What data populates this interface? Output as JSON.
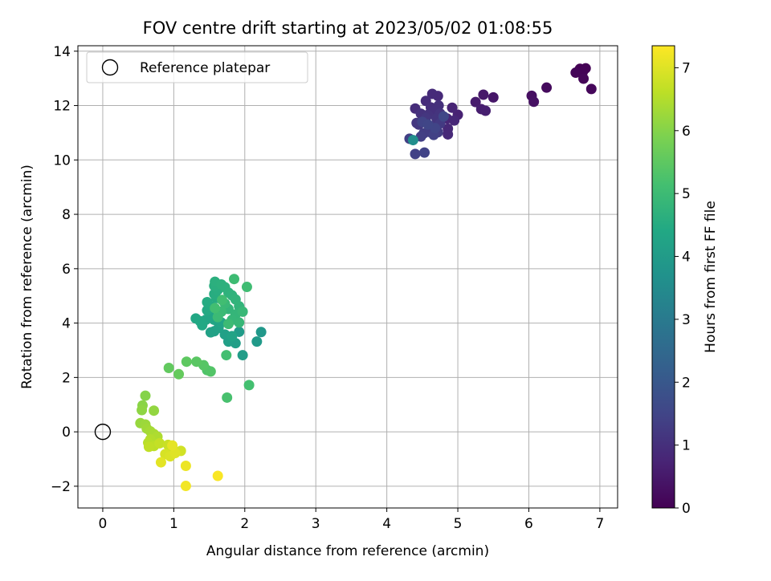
{
  "chart_data": {
    "type": "scatter",
    "title": "FOV centre drift starting at 2023/05/02 01:08:55",
    "xlabel": "Angular distance from reference (arcmin)",
    "ylabel": "Rotation from reference (arcmin)",
    "xlim": [
      -0.35,
      7.25
    ],
    "ylim": [
      -2.8,
      14.2
    ],
    "xticks": [
      0,
      1,
      2,
      3,
      4,
      5,
      6,
      7
    ],
    "yticks": [
      -2,
      0,
      2,
      4,
      6,
      8,
      10,
      12,
      14
    ],
    "xtick_labels": [
      "0",
      "1",
      "2",
      "3",
      "4",
      "5",
      "6",
      "7"
    ],
    "ytick_labels": [
      "−2",
      "0",
      "2",
      "4",
      "6",
      "8",
      "10",
      "12",
      "14"
    ],
    "grid": true,
    "legend": {
      "placement": "upper-left",
      "entries": [
        {
          "label": "Reference platepar",
          "marker": "open-circle"
        }
      ]
    },
    "reference_point": {
      "x": 0,
      "y": 0
    },
    "colorbar": {
      "label": "Hours from first FF file",
      "colormap": "viridis",
      "range": [
        0,
        7.35
      ],
      "ticks": [
        0,
        1,
        2,
        3,
        4,
        5,
        6,
        7
      ],
      "tick_labels": [
        "0",
        "1",
        "2",
        "3",
        "4",
        "5",
        "6",
        "7"
      ]
    },
    "points": [
      [
        6.72,
        13.35,
        0.0
      ],
      [
        6.8,
        13.37,
        0.03
      ],
      [
        6.76,
        13.24,
        0.05
      ],
      [
        6.66,
        13.21,
        0.08
      ],
      [
        6.77,
        12.99,
        0.1
      ],
      [
        6.88,
        12.61,
        0.13
      ],
      [
        6.25,
        12.66,
        0.2
      ],
      [
        6.04,
        12.36,
        0.3
      ],
      [
        6.07,
        12.14,
        0.33
      ],
      [
        5.5,
        12.3,
        0.45
      ],
      [
        5.36,
        12.4,
        0.5
      ],
      [
        5.25,
        12.13,
        0.55
      ],
      [
        5.33,
        11.87,
        0.6
      ],
      [
        5.39,
        11.81,
        0.63
      ],
      [
        5.0,
        11.66,
        0.7
      ],
      [
        4.92,
        11.92,
        0.75
      ],
      [
        4.85,
        11.52,
        0.78
      ],
      [
        4.95,
        11.45,
        0.8
      ],
      [
        4.86,
        11.15,
        0.83
      ],
      [
        4.86,
        10.94,
        0.85
      ],
      [
        4.72,
        12.35,
        0.88
      ],
      [
        4.64,
        12.43,
        0.9
      ],
      [
        4.55,
        12.17,
        0.92
      ],
      [
        4.4,
        11.89,
        0.95
      ],
      [
        4.62,
        11.93,
        0.97
      ],
      [
        4.73,
        12.0,
        1.0
      ],
      [
        4.66,
        11.8,
        1.02
      ],
      [
        4.48,
        11.7,
        1.05
      ],
      [
        4.58,
        11.66,
        1.07
      ],
      [
        4.75,
        11.71,
        1.1
      ],
      [
        4.7,
        11.53,
        1.12
      ],
      [
        4.55,
        11.54,
        1.15
      ],
      [
        4.42,
        11.36,
        1.17
      ],
      [
        4.45,
        11.3,
        1.2
      ],
      [
        4.62,
        11.24,
        1.22
      ],
      [
        4.75,
        11.34,
        1.25
      ],
      [
        4.6,
        11.03,
        1.27
      ],
      [
        4.72,
        11.02,
        1.3
      ],
      [
        4.52,
        10.98,
        1.32
      ],
      [
        4.48,
        10.86,
        1.35
      ],
      [
        4.32,
        10.78,
        1.37
      ],
      [
        4.66,
        10.92,
        1.4
      ],
      [
        4.4,
        10.22,
        1.42
      ],
      [
        4.53,
        10.27,
        1.45
      ],
      [
        4.5,
        11.4,
        1.47
      ],
      [
        4.68,
        11.17,
        1.5
      ],
      [
        4.58,
        11.3,
        1.52
      ],
      [
        4.8,
        11.6,
        1.55
      ],
      [
        4.37,
        10.73,
        3.6
      ],
      [
        2.23,
        3.67,
        3.9
      ],
      [
        2.17,
        3.32,
        3.95
      ],
      [
        1.92,
        3.68,
        4.0
      ],
      [
        1.97,
        2.82,
        4.05
      ],
      [
        1.87,
        3.26,
        4.1
      ],
      [
        1.77,
        3.32,
        4.12
      ],
      [
        1.72,
        3.58,
        4.15
      ],
      [
        1.57,
        3.7,
        4.18
      ],
      [
        1.52,
        3.66,
        4.2
      ],
      [
        1.63,
        3.82,
        4.22
      ],
      [
        1.82,
        3.52,
        4.25
      ],
      [
        1.67,
        4.02,
        4.27
      ],
      [
        1.57,
        4.12,
        4.3
      ],
      [
        1.52,
        4.22,
        4.32
      ],
      [
        1.45,
        4.12,
        4.35
      ],
      [
        1.31,
        4.17,
        4.37
      ],
      [
        1.37,
        4.07,
        4.4
      ],
      [
        1.4,
        3.92,
        4.42
      ],
      [
        1.47,
        4.47,
        4.45
      ],
      [
        1.52,
        4.62,
        4.47
      ],
      [
        1.47,
        4.77,
        4.5
      ],
      [
        1.6,
        4.92,
        4.52
      ],
      [
        1.57,
        5.07,
        4.55
      ],
      [
        1.62,
        5.22,
        4.57
      ],
      [
        1.57,
        5.37,
        4.6
      ],
      [
        1.58,
        5.52,
        4.62
      ],
      [
        1.67,
        5.42,
        4.65
      ],
      [
        1.72,
        5.32,
        4.67
      ],
      [
        1.77,
        5.12,
        4.7
      ],
      [
        1.82,
        5.02,
        4.72
      ],
      [
        1.87,
        4.87,
        4.75
      ],
      [
        1.92,
        4.62,
        4.77
      ],
      [
        1.77,
        4.52,
        4.8
      ],
      [
        1.87,
        4.32,
        4.82
      ],
      [
        1.82,
        4.12,
        4.85
      ],
      [
        1.92,
        4.02,
        4.87
      ],
      [
        1.97,
        4.42,
        4.9
      ],
      [
        1.72,
        4.72,
        4.92
      ],
      [
        1.67,
        4.42,
        4.95
      ],
      [
        1.62,
        4.22,
        4.97
      ],
      [
        1.77,
        3.97,
        5.0
      ],
      [
        1.85,
        5.62,
        5.02
      ],
      [
        2.03,
        5.33,
        5.05
      ],
      [
        1.68,
        4.85,
        5.07
      ],
      [
        1.58,
        4.55,
        5.1
      ],
      [
        1.74,
        2.82,
        5.12
      ],
      [
        2.06,
        1.72,
        5.15
      ],
      [
        1.75,
        1.26,
        5.2
      ],
      [
        1.47,
        2.27,
        5.3
      ],
      [
        1.52,
        2.22,
        5.35
      ],
      [
        1.42,
        2.45,
        5.4
      ],
      [
        1.32,
        2.58,
        5.45
      ],
      [
        1.18,
        2.58,
        5.5
      ],
      [
        0.93,
        2.35,
        5.55
      ],
      [
        1.07,
        2.12,
        5.6
      ],
      [
        0.6,
        1.33,
        6.0
      ],
      [
        0.56,
        0.97,
        6.05
      ],
      [
        0.55,
        0.8,
        6.1
      ],
      [
        0.72,
        0.78,
        6.15
      ],
      [
        0.53,
        0.32,
        6.2
      ],
      [
        0.6,
        0.27,
        6.25
      ],
      [
        0.62,
        0.12,
        6.3
      ],
      [
        0.67,
        0.02,
        6.35
      ],
      [
        0.72,
        -0.08,
        6.4
      ],
      [
        0.77,
        -0.18,
        6.45
      ],
      [
        0.67,
        -0.28,
        6.5
      ],
      [
        0.64,
        -0.4,
        6.55
      ],
      [
        0.72,
        -0.52,
        6.6
      ],
      [
        0.65,
        -0.55,
        6.65
      ],
      [
        0.8,
        -0.42,
        6.7
      ],
      [
        0.92,
        -0.48,
        6.75
      ],
      [
        0.98,
        -0.58,
        6.8
      ],
      [
        1.1,
        -0.7,
        6.85
      ],
      [
        0.88,
        -0.82,
        6.9
      ],
      [
        0.95,
        -0.9,
        6.95
      ],
      [
        1.02,
        -0.78,
        7.0
      ],
      [
        0.82,
        -1.12,
        7.05
      ],
      [
        0.98,
        -0.5,
        7.08
      ],
      [
        1.17,
        -1.25,
        7.15
      ],
      [
        1.17,
        -1.99,
        7.22
      ],
      [
        1.62,
        -1.62,
        7.3
      ]
    ]
  }
}
